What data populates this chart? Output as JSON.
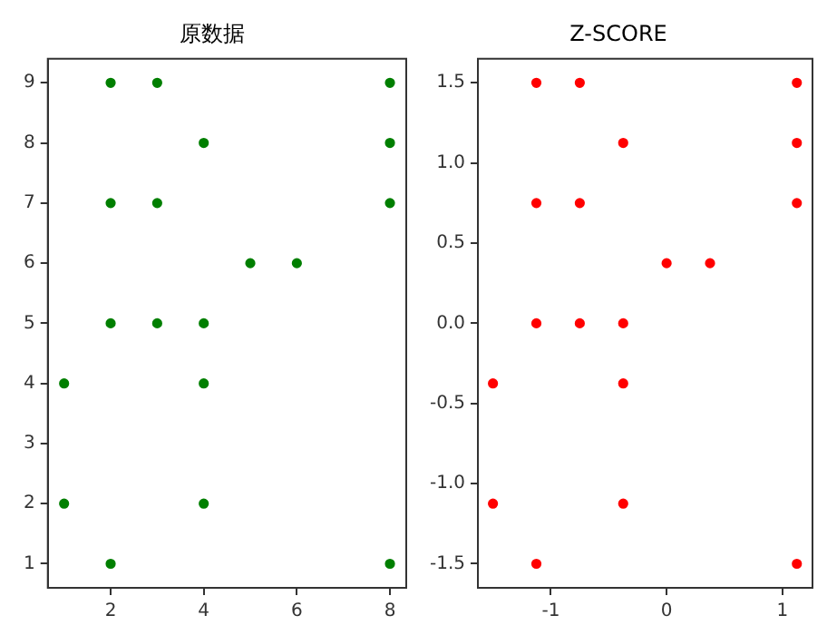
{
  "chart_data": [
    {
      "type": "scatter",
      "title": "原数据",
      "x": [
        1,
        1,
        2,
        2,
        2,
        2,
        3,
        3,
        3,
        4,
        4,
        4,
        4,
        5,
        6,
        8,
        8,
        8,
        8
      ],
      "series": [
        {
          "color": "#007f00",
          "values": [
            4,
            2,
            9,
            7,
            5,
            1,
            9,
            7,
            5,
            8,
            5,
            4,
            2,
            6,
            6,
            9,
            8,
            7,
            1
          ]
        }
      ],
      "xlim": [
        0.65,
        8.35
      ],
      "ylim": [
        0.6,
        9.4
      ],
      "xticks": [
        2,
        4,
        6,
        8
      ],
      "yticks": [
        1,
        2,
        3,
        4,
        5,
        6,
        7,
        8,
        9
      ],
      "marker": "circle",
      "grid": false,
      "legend": false
    },
    {
      "type": "scatter",
      "title": "Z-SCORE",
      "x": [
        -1.5,
        -1.5,
        -1.125,
        -1.125,
        -1.125,
        -1.125,
        -0.75,
        -0.75,
        -0.75,
        -0.375,
        -0.375,
        -0.375,
        -0.375,
        0,
        0.375,
        1.125,
        1.125,
        1.125,
        1.125
      ],
      "series": [
        {
          "color": "#ff0000",
          "values": [
            -0.375,
            -1.125,
            1.5,
            0.75,
            0,
            -1.5,
            1.5,
            0.75,
            0,
            1.125,
            0,
            -0.375,
            -1.125,
            0.375,
            0.375,
            1.5,
            1.125,
            0.75,
            -1.5
          ]
        }
      ],
      "xlim": [
        -1.63,
        1.26
      ],
      "ylim": [
        -1.65,
        1.65
      ],
      "xticks": [
        -1,
        0,
        1
      ],
      "yticks": [
        {
          "value": -1.5,
          "label": "-1.5"
        },
        {
          "value": -1.0,
          "label": "-1.0"
        },
        {
          "value": -0.5,
          "label": "-0.5"
        },
        {
          "value": 0,
          "label": "0.0"
        },
        {
          "value": 0.5,
          "label": "0.5"
        },
        {
          "value": 1.0,
          "label": "1.0"
        },
        {
          "value": 1.5,
          "label": "1.5"
        }
      ],
      "marker": "circle",
      "grid": false,
      "legend": false
    }
  ]
}
